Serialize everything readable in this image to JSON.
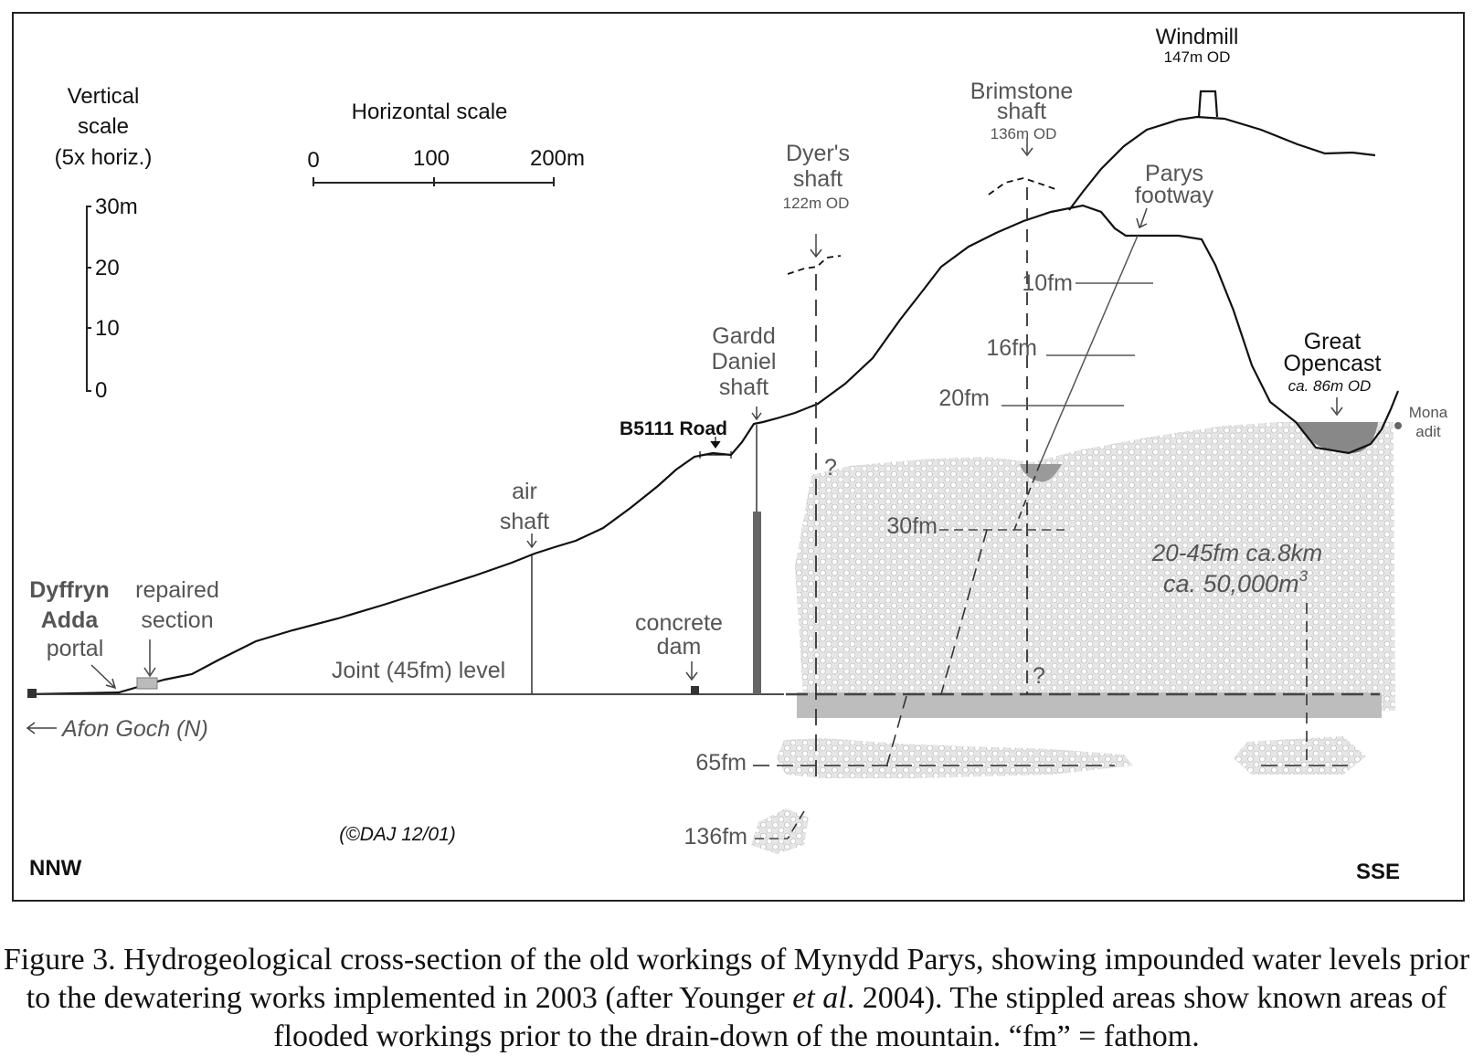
{
  "scales": {
    "vertical_title": [
      "Vertical",
      "scale",
      "(5x horiz.)"
    ],
    "vertical_ticks": [
      "30m",
      "20",
      "10",
      "0"
    ],
    "horizontal_title": "Horizontal scale",
    "horizontal_ticks": [
      "0",
      "100",
      "200m"
    ]
  },
  "features": {
    "windmill": "Windmill",
    "windmill_od": "147m OD",
    "brimstone": [
      "Brimstone",
      "shaft"
    ],
    "brimstone_od": "136m OD",
    "dyers": [
      "Dyer's",
      "shaft"
    ],
    "dyers_od": "122m OD",
    "parys_footway": [
      "Parys",
      "footway"
    ],
    "gardd_daniel": [
      "Gardd",
      "Daniel",
      "shaft"
    ],
    "b5111": "B5111 Road",
    "great_opencast": [
      "Great",
      "Opencast"
    ],
    "opencast_od": "ca. 86m OD",
    "mona_adit": [
      "Mona",
      "adit"
    ],
    "air_shaft": [
      "air",
      "shaft"
    ],
    "concrete_dam": [
      "concrete",
      "dam"
    ],
    "dyffryn": [
      "Dyffryn",
      "Adda"
    ],
    "portal": "portal",
    "repaired": [
      "repaired",
      "section"
    ],
    "joint_level": "Joint (45fm) level",
    "afon_goch": "Afon Goch (N)",
    "copyright": "(©DAJ 12/01)",
    "volume_line1": "20-45fm ca.8km",
    "volume_line2": "ca. 50,000m",
    "volume_sup": "3",
    "question": "?"
  },
  "levels": {
    "l10": "10fm",
    "l16": "16fm",
    "l20": "20fm",
    "l30": "30fm",
    "l65": "65fm",
    "l136": "136fm"
  },
  "directions": {
    "left": "NNW",
    "right": "SSE"
  },
  "caption": {
    "part1": "Figure 3. Hydrogeological cross-section of the old workings of Mynydd Parys, showing impounded water levels prior to the dewatering works implemented in 2003 (after Younger ",
    "italic": "et al",
    "part2": ". 2004). The stippled areas show known areas of flooded workings prior to the drain-down of the mountain. “fm” = fathom."
  },
  "colors": {
    "ink": "#111111",
    "label_grey": "#555555",
    "stipple": "#d2d2d2",
    "water": "#888888"
  }
}
